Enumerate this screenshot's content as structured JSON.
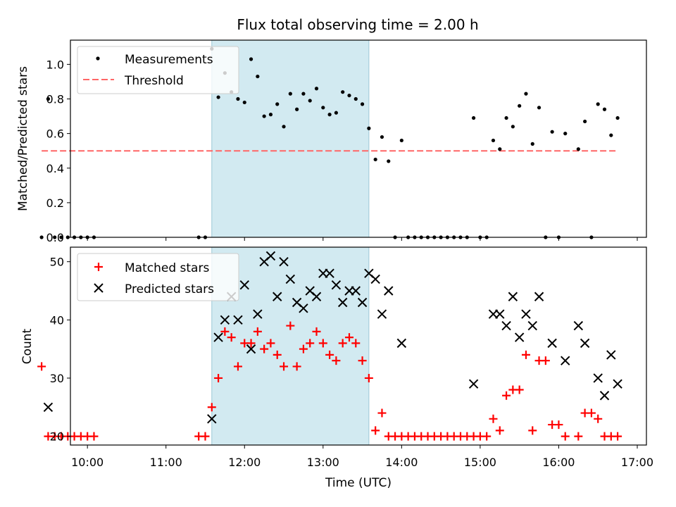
{
  "title": "Flux total observing time = 2.00 h",
  "colors": {
    "highlight": "#add8e6",
    "measurement": "#000000",
    "threshold": "#ff6666",
    "matched": "#ff0000",
    "predicted": "#000000"
  },
  "chart_data": [
    {
      "type": "scatter",
      "ylabel": "Matched/Predicted stars",
      "xlim": [
        "09:47",
        "17:07"
      ],
      "ylim": [
        0,
        1.14
      ],
      "xticks": [],
      "yticks": [
        "0.0",
        "0.2",
        "0.4",
        "0.6",
        "0.8",
        "1.0"
      ],
      "legend": {
        "placement": "top-left",
        "entries": [
          "Measurements",
          "Threshold"
        ]
      },
      "highlight_span": {
        "x0": "11:35",
        "x1": "13:35"
      },
      "threshold": {
        "value": 0.5,
        "x0": "09:25",
        "x1": "16:45"
      },
      "series": [
        {
          "name": "Measurements",
          "marker": "dot",
          "points": [
            [
              "09:25",
              0
            ],
            [
              "09:30",
              0.8
            ],
            [
              "09:35",
              0
            ],
            [
              "09:40",
              0
            ],
            [
              "09:45",
              0
            ],
            [
              "09:50",
              0
            ],
            [
              "09:55",
              0
            ],
            [
              "10:00",
              0
            ],
            [
              "10:05",
              0
            ],
            [
              "11:25",
              0
            ],
            [
              "11:30",
              0
            ],
            [
              "11:35",
              1.09
            ],
            [
              "11:40",
              0.81
            ],
            [
              "11:45",
              0.95
            ],
            [
              "11:50",
              0.84
            ],
            [
              "11:55",
              0.8
            ],
            [
              "12:00",
              0.78
            ],
            [
              "12:05",
              1.03
            ],
            [
              "12:10",
              0.93
            ],
            [
              "12:15",
              0.7
            ],
            [
              "12:20",
              0.71
            ],
            [
              "12:25",
              0.77
            ],
            [
              "12:30",
              0.64
            ],
            [
              "12:35",
              0.83
            ],
            [
              "12:40",
              0.74
            ],
            [
              "12:45",
              0.83
            ],
            [
              "12:50",
              0.79
            ],
            [
              "12:55",
              0.86
            ],
            [
              "13:00",
              0.75
            ],
            [
              "13:05",
              0.71
            ],
            [
              "13:10",
              0.72
            ],
            [
              "13:15",
              0.84
            ],
            [
              "13:20",
              0.82
            ],
            [
              "13:25",
              0.8
            ],
            [
              "13:30",
              0.77
            ],
            [
              "13:35",
              0.63
            ],
            [
              "13:40",
              0.45
            ],
            [
              "13:45",
              0.58
            ],
            [
              "13:50",
              0.44
            ],
            [
              "13:55",
              0
            ],
            [
              "14:00",
              0.56
            ],
            [
              "14:05",
              0
            ],
            [
              "14:10",
              0
            ],
            [
              "14:15",
              0
            ],
            [
              "14:20",
              0
            ],
            [
              "14:25",
              0
            ],
            [
              "14:30",
              0
            ],
            [
              "14:35",
              0
            ],
            [
              "14:40",
              0
            ],
            [
              "14:45",
              0
            ],
            [
              "14:50",
              0
            ],
            [
              "14:55",
              0.69
            ],
            [
              "15:00",
              0
            ],
            [
              "15:05",
              0
            ],
            [
              "15:10",
              0.56
            ],
            [
              "15:15",
              0.51
            ],
            [
              "15:20",
              0.69
            ],
            [
              "15:25",
              0.64
            ],
            [
              "15:30",
              0.76
            ],
            [
              "15:35",
              0.83
            ],
            [
              "15:40",
              0.54
            ],
            [
              "15:45",
              0.75
            ],
            [
              "15:50",
              0
            ],
            [
              "15:55",
              0.61
            ],
            [
              "16:00",
              0
            ],
            [
              "16:05",
              0.6
            ],
            [
              "16:15",
              0.51
            ],
            [
              "16:20",
              0.67
            ],
            [
              "16:25",
              0
            ],
            [
              "16:30",
              0.77
            ],
            [
              "16:35",
              0.74
            ],
            [
              "16:40",
              0.59
            ],
            [
              "16:45",
              0.69
            ]
          ]
        }
      ]
    },
    {
      "type": "scatter",
      "xlabel": "Time (UTC)",
      "ylabel": "Count",
      "xlim": [
        "09:47",
        "17:07"
      ],
      "ylim": [
        18.5,
        52.5
      ],
      "xticks": [
        "10:00",
        "11:00",
        "12:00",
        "13:00",
        "14:00",
        "15:00",
        "16:00",
        "17:00"
      ],
      "yticks": [
        "20",
        "30",
        "40",
        "50"
      ],
      "legend": {
        "placement": "top-left",
        "entries": [
          "Matched stars",
          "Predicted stars"
        ]
      },
      "highlight_span": {
        "x0": "11:35",
        "x1": "13:35"
      },
      "series": [
        {
          "name": "Matched stars",
          "marker": "plus",
          "points": [
            [
              "09:25",
              32
            ],
            [
              "09:30",
              20
            ],
            [
              "09:35",
              20
            ],
            [
              "09:40",
              20
            ],
            [
              "09:45",
              20
            ],
            [
              "09:50",
              20
            ],
            [
              "09:55",
              20
            ],
            [
              "10:00",
              20
            ],
            [
              "10:05",
              20
            ],
            [
              "11:25",
              20
            ],
            [
              "11:30",
              20
            ],
            [
              "11:35",
              25
            ],
            [
              "11:40",
              30
            ],
            [
              "11:45",
              38
            ],
            [
              "11:50",
              37
            ],
            [
              "11:55",
              32
            ],
            [
              "12:00",
              36
            ],
            [
              "12:05",
              36
            ],
            [
              "12:10",
              38
            ],
            [
              "12:15",
              35
            ],
            [
              "12:20",
              36
            ],
            [
              "12:25",
              34
            ],
            [
              "12:30",
              32
            ],
            [
              "12:35",
              39
            ],
            [
              "12:40",
              32
            ],
            [
              "12:45",
              35
            ],
            [
              "12:50",
              36
            ],
            [
              "12:55",
              38
            ],
            [
              "13:00",
              36
            ],
            [
              "13:05",
              34
            ],
            [
              "13:10",
              33
            ],
            [
              "13:15",
              36
            ],
            [
              "13:20",
              37
            ],
            [
              "13:25",
              36
            ],
            [
              "13:30",
              33
            ],
            [
              "13:35",
              30
            ],
            [
              "13:40",
              21
            ],
            [
              "13:45",
              24
            ],
            [
              "13:50",
              20
            ],
            [
              "13:55",
              20
            ],
            [
              "14:00",
              20
            ],
            [
              "14:05",
              20
            ],
            [
              "14:10",
              20
            ],
            [
              "14:15",
              20
            ],
            [
              "14:20",
              20
            ],
            [
              "14:25",
              20
            ],
            [
              "14:30",
              20
            ],
            [
              "14:35",
              20
            ],
            [
              "14:40",
              20
            ],
            [
              "14:45",
              20
            ],
            [
              "14:50",
              20
            ],
            [
              "14:55",
              20
            ],
            [
              "15:00",
              20
            ],
            [
              "15:05",
              20
            ],
            [
              "15:10",
              23
            ],
            [
              "15:15",
              21
            ],
            [
              "15:20",
              27
            ],
            [
              "15:25",
              28
            ],
            [
              "15:30",
              28
            ],
            [
              "15:35",
              34
            ],
            [
              "15:40",
              21
            ],
            [
              "15:45",
              33
            ],
            [
              "15:50",
              33
            ],
            [
              "15:55",
              22
            ],
            [
              "16:00",
              22
            ],
            [
              "16:05",
              20
            ],
            [
              "16:15",
              20
            ],
            [
              "16:20",
              24
            ],
            [
              "16:25",
              24
            ],
            [
              "16:30",
              23
            ],
            [
              "16:35",
              20
            ],
            [
              "16:40",
              20
            ],
            [
              "16:45",
              20
            ]
          ]
        },
        {
          "name": "Predicted stars",
          "marker": "x",
          "points": [
            [
              "09:30",
              25
            ],
            [
              "11:35",
              23
            ],
            [
              "11:40",
              37
            ],
            [
              "11:45",
              40
            ],
            [
              "11:50",
              44
            ],
            [
              "11:55",
              40
            ],
            [
              "12:00",
              46
            ],
            [
              "12:05",
              35
            ],
            [
              "12:10",
              41
            ],
            [
              "12:15",
              50
            ],
            [
              "12:20",
              51
            ],
            [
              "12:25",
              44
            ],
            [
              "12:30",
              50
            ],
            [
              "12:35",
              47
            ],
            [
              "12:40",
              43
            ],
            [
              "12:45",
              42
            ],
            [
              "12:50",
              45
            ],
            [
              "12:55",
              44
            ],
            [
              "13:00",
              48
            ],
            [
              "13:05",
              48
            ],
            [
              "13:10",
              46
            ],
            [
              "13:15",
              43
            ],
            [
              "13:20",
              45
            ],
            [
              "13:25",
              45
            ],
            [
              "13:30",
              43
            ],
            [
              "13:35",
              48
            ],
            [
              "13:40",
              47
            ],
            [
              "13:45",
              41
            ],
            [
              "13:50",
              45
            ],
            [
              "14:00",
              36
            ],
            [
              "14:55",
              29
            ],
            [
              "15:10",
              41
            ],
            [
              "15:15",
              41
            ],
            [
              "15:20",
              39
            ],
            [
              "15:25",
              44
            ],
            [
              "15:30",
              37
            ],
            [
              "15:35",
              41
            ],
            [
              "15:40",
              39
            ],
            [
              "15:45",
              44
            ],
            [
              "15:55",
              36
            ],
            [
              "16:05",
              33
            ],
            [
              "16:15",
              39
            ],
            [
              "16:20",
              36
            ],
            [
              "16:30",
              30
            ],
            [
              "16:35",
              27
            ],
            [
              "16:40",
              34
            ],
            [
              "16:45",
              29
            ]
          ]
        }
      ]
    }
  ]
}
